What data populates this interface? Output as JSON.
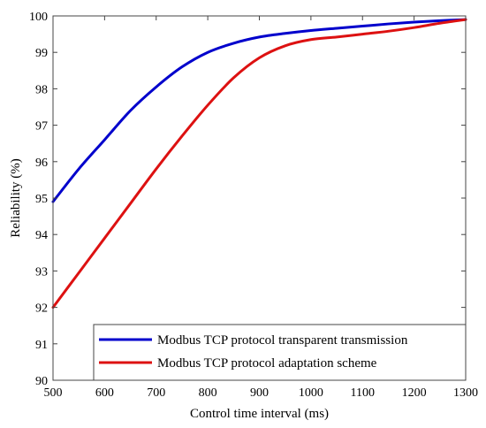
{
  "chart_data": {
    "type": "line",
    "title": "",
    "xlabel": "Control time interval (ms)",
    "ylabel": "Reliability (%)",
    "xlim": [
      500,
      1300
    ],
    "ylim": [
      90,
      100
    ],
    "xticks": [
      500,
      600,
      700,
      800,
      900,
      1000,
      1100,
      1200,
      1300
    ],
    "yticks": [
      90,
      91,
      92,
      93,
      94,
      95,
      96,
      97,
      98,
      99,
      100
    ],
    "grid": false,
    "legend_position": "bottom-right",
    "series": [
      {
        "name": "Modbus TCP protocol transparent transmission",
        "color": "#0000cc",
        "x": [
          500,
          550,
          600,
          650,
          700,
          750,
          800,
          850,
          900,
          950,
          1000,
          1050,
          1100,
          1150,
          1200,
          1250,
          1300
        ],
        "y": [
          94.9,
          95.8,
          96.6,
          97.4,
          98.05,
          98.6,
          99.0,
          99.25,
          99.42,
          99.52,
          99.6,
          99.66,
          99.72,
          99.78,
          99.83,
          99.87,
          99.9
        ]
      },
      {
        "name": "Modbus TCP protocol adaptation scheme",
        "color": "#dd1111",
        "x": [
          500,
          550,
          600,
          650,
          700,
          750,
          800,
          850,
          900,
          950,
          1000,
          1050,
          1100,
          1150,
          1200,
          1250,
          1300
        ],
        "y": [
          92.0,
          92.95,
          93.9,
          94.85,
          95.8,
          96.7,
          97.55,
          98.3,
          98.85,
          99.18,
          99.35,
          99.42,
          99.5,
          99.58,
          99.68,
          99.8,
          99.9
        ]
      }
    ]
  }
}
